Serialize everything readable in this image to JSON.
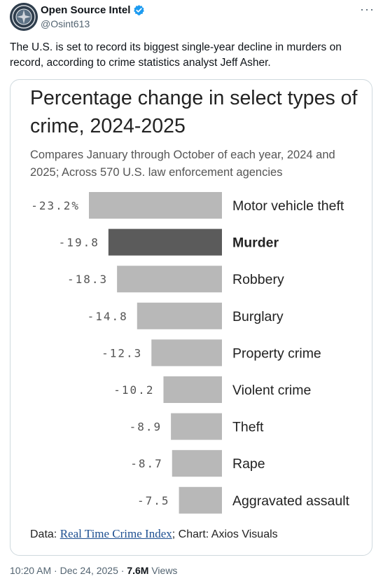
{
  "post": {
    "display_name": "Open Source Intel",
    "handle": "@Osint613",
    "verified": true,
    "more_label": "···",
    "text": "The U.S. is set to record its biggest single-year decline in murders on record, according to crime statistics analyst Jeff Asher.",
    "timestamp": "10:20 AM · Dec 24, 2025 · ",
    "views_count": "7.6M",
    "views_label": " Views"
  },
  "card": {
    "source_prefix": "Data: ",
    "source_link": "Real Time Crime Index",
    "source_suffix": "; Chart: Axios Visuals"
  },
  "chart_data": {
    "type": "bar",
    "orientation": "horizontal",
    "title": "Percentage change in select types of crime, 2024-2025",
    "subtitle": "Compares January through October of each year, 2024 and 2025; Across 570 U.S. law enforcement agencies",
    "categories": [
      "Motor vehicle theft",
      "Murder",
      "Robbery",
      "Burglary",
      "Property crime",
      "Violent crime",
      "Theft",
      "Rape",
      "Aggravated assault"
    ],
    "values": [
      -23.2,
      -19.8,
      -18.3,
      -14.8,
      -12.3,
      -10.2,
      -8.9,
      -8.7,
      -7.5
    ],
    "value_labels": [
      "-23.2%",
      "-19.8",
      "-18.3",
      "-14.8",
      "-12.3",
      "-10.2",
      "-8.9",
      "-8.7",
      "-7.5"
    ],
    "highlight": "Murder",
    "bar_color": "#b8b8b8",
    "highlight_color": "#5b5b5b",
    "xlim": [
      -23.2,
      0
    ],
    "grid": false,
    "legend": "none"
  },
  "colors": {
    "verified": "#1d9bf0",
    "link": "#1d4f91"
  }
}
